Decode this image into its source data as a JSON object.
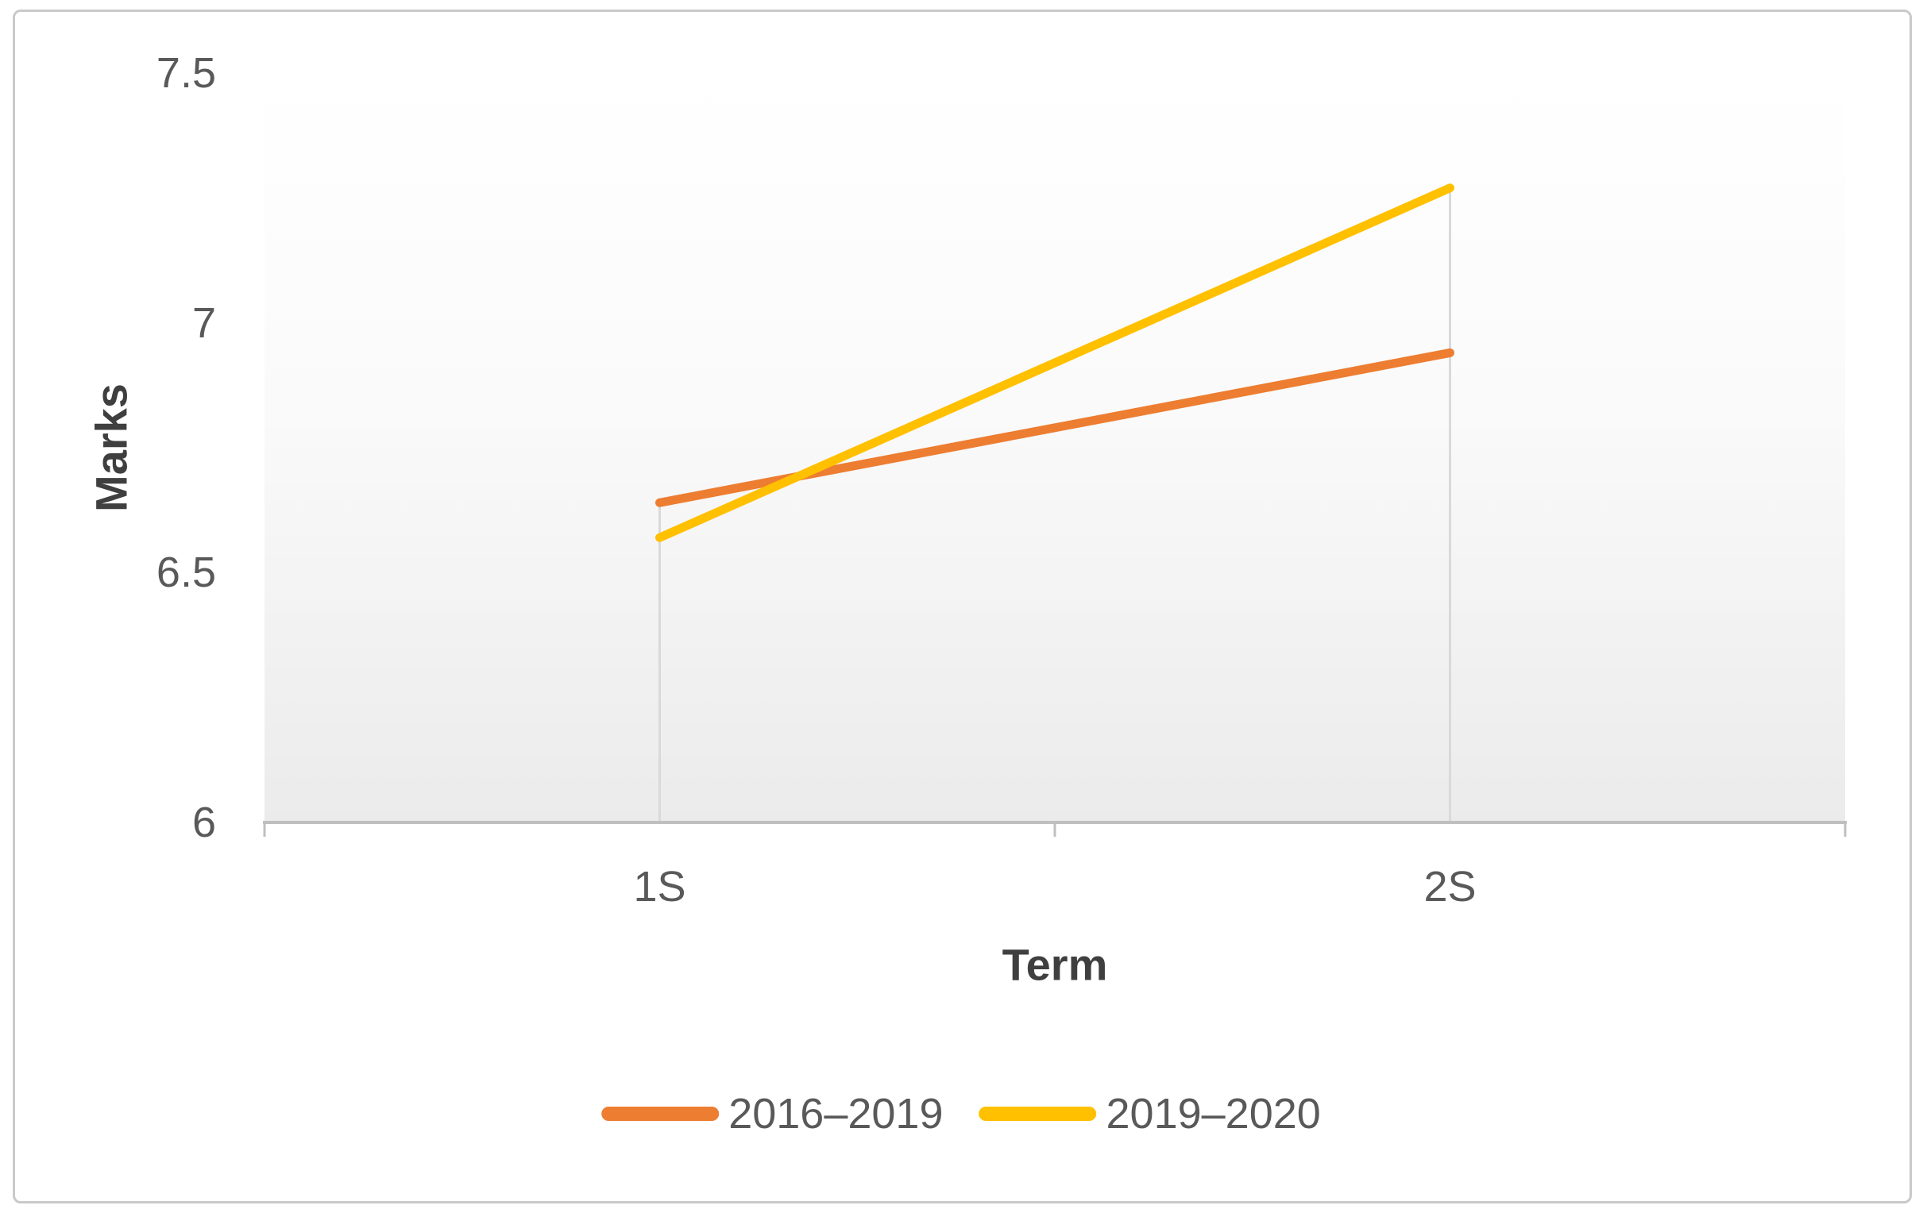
{
  "chart_data": {
    "type": "line",
    "categories": [
      "1S",
      "2S"
    ],
    "series": [
      {
        "name": "2016–2019",
        "color": "#ED7D31",
        "values": [
          6.64,
          6.94
        ]
      },
      {
        "name": "2019–2020",
        "color": "#FFC000",
        "values": [
          6.57,
          7.27
        ]
      }
    ],
    "title": "",
    "xlabel": "Term",
    "ylabel": "Marks",
    "ylim": [
      6,
      7.5
    ],
    "y_ticks": [
      7.5,
      7,
      6.5,
      6
    ],
    "grid": "off",
    "drop_lines": "vertical drop lines at each category from top-most series point to x-axis",
    "legend_position": "bottom-center"
  },
  "colors": {
    "axis_line": "#BFBFBF",
    "drop_line": "#D9D9D9",
    "tick_text": "#595959",
    "axis_title_text": "#3F3F3F",
    "plot_fill_bottom": "#EBEBEB",
    "frame_border": "#C9C9C9",
    "series_orange": "#ED7D31",
    "series_yellow": "#FFC000"
  }
}
